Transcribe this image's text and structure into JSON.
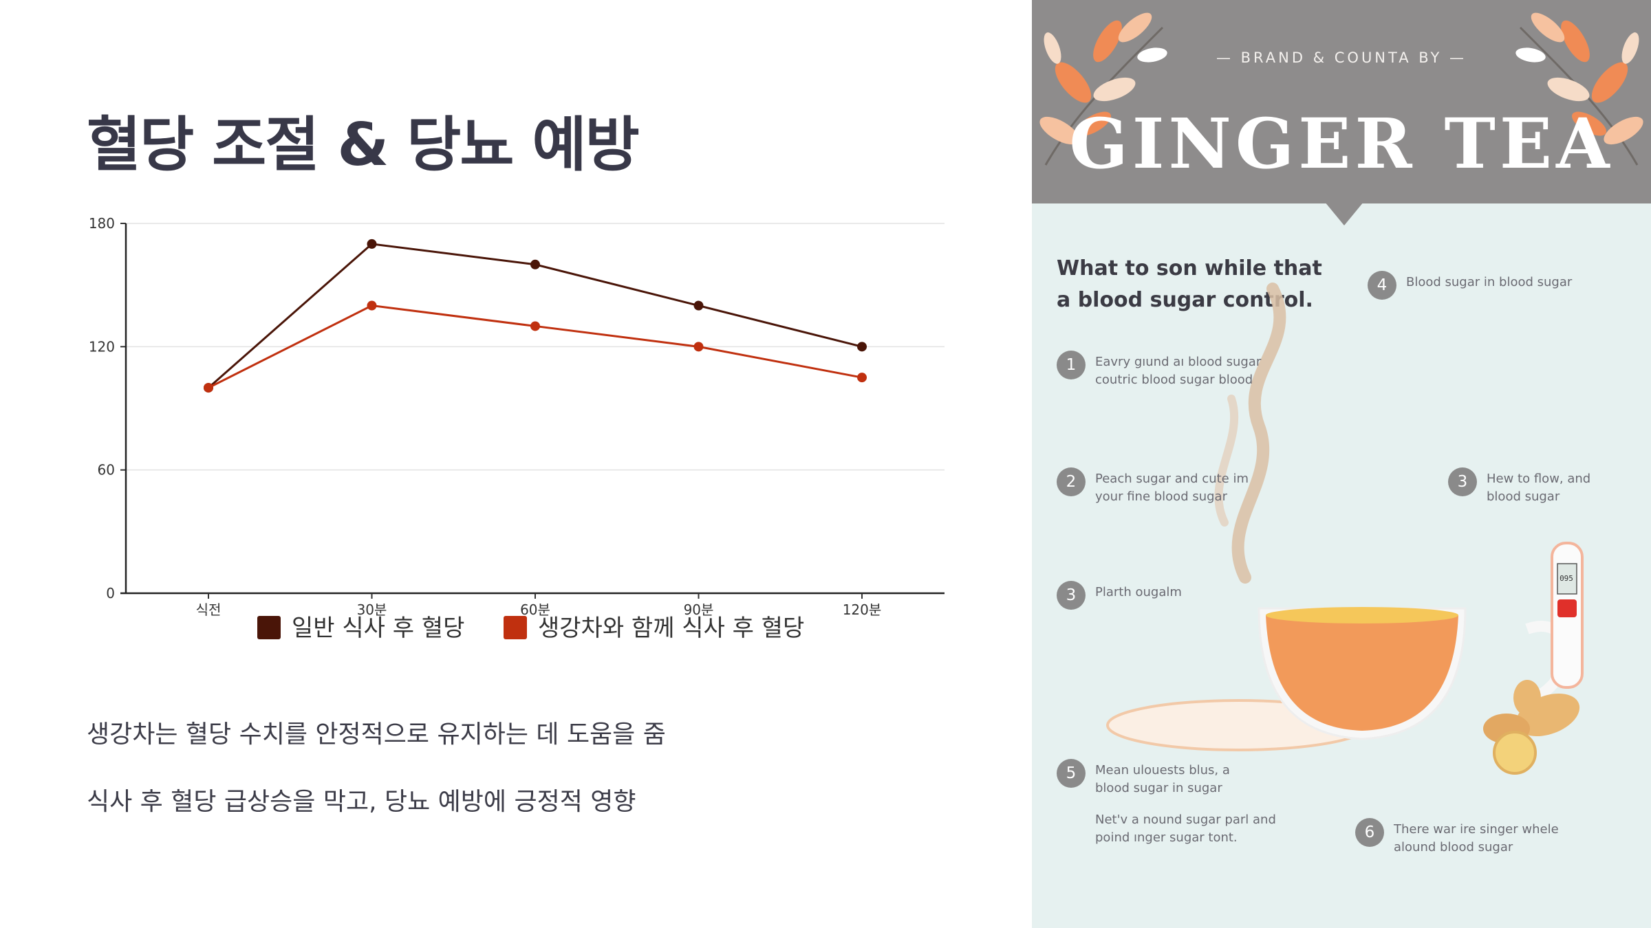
{
  "slide": {
    "title": "혈당 조절 & 당뇨 예방",
    "bullets": [
      "생강차는 혈당 수치를 안정적으로 유지하는 데 도움을 줌",
      "식사 후 혈당 급상승을 막고, 당뇨 예방에 긍정적 영향"
    ]
  },
  "chart_data": {
    "type": "line",
    "categories": [
      "식전",
      "30분",
      "60분",
      "90분",
      "120분"
    ],
    "series": [
      {
        "name": "일반 식사 후 혈당",
        "values": [
          100,
          170,
          160,
          140,
          120
        ],
        "color": "#4a1508"
      },
      {
        "name": "생강차와 함께 식사 후 혈당",
        "values": [
          100,
          140,
          130,
          120,
          105
        ],
        "color": "#c0300f"
      }
    ],
    "ylim": [
      0,
      180
    ],
    "yticks": [
      0,
      60,
      120,
      180
    ],
    "grid": true,
    "legend": "bottom"
  },
  "infographic": {
    "brand_line": "— BRAND & COUNTA BY —",
    "title": "GINGER TEA",
    "heading": "What to son while that a blood sugar control.",
    "steps": [
      {
        "num": "1",
        "text": [
          "Eavry gıund aı blood sugar",
          "coutric blood sugar blood"
        ]
      },
      {
        "num": "2",
        "text": [
          "Peach sugar and cute im",
          "your fine blood sugar"
        ]
      },
      {
        "num": "3",
        "text": [
          "Plarth ougalm"
        ]
      },
      {
        "num": "3",
        "text": [
          "Hew to flow, and",
          "blood sugar"
        ]
      },
      {
        "num": "4",
        "text": [
          "Blood sugar in blood sugar"
        ]
      },
      {
        "num": "5",
        "text": [
          "Mean ulouests blus, a",
          "blood sugar in sugar"
        ],
        "extra": [
          "Net'v a nound sugar parl and",
          "poind ınger sugar tont."
        ]
      },
      {
        "num": "6",
        "text": [
          "There war ire singer whele",
          "alound blood sugar"
        ]
      }
    ],
    "meter_reading": "095",
    "colors": {
      "banner": "#8e8c8c",
      "background": "#e6f1f0",
      "tea": "#f29a5a",
      "leaf": "#f08b55"
    }
  }
}
